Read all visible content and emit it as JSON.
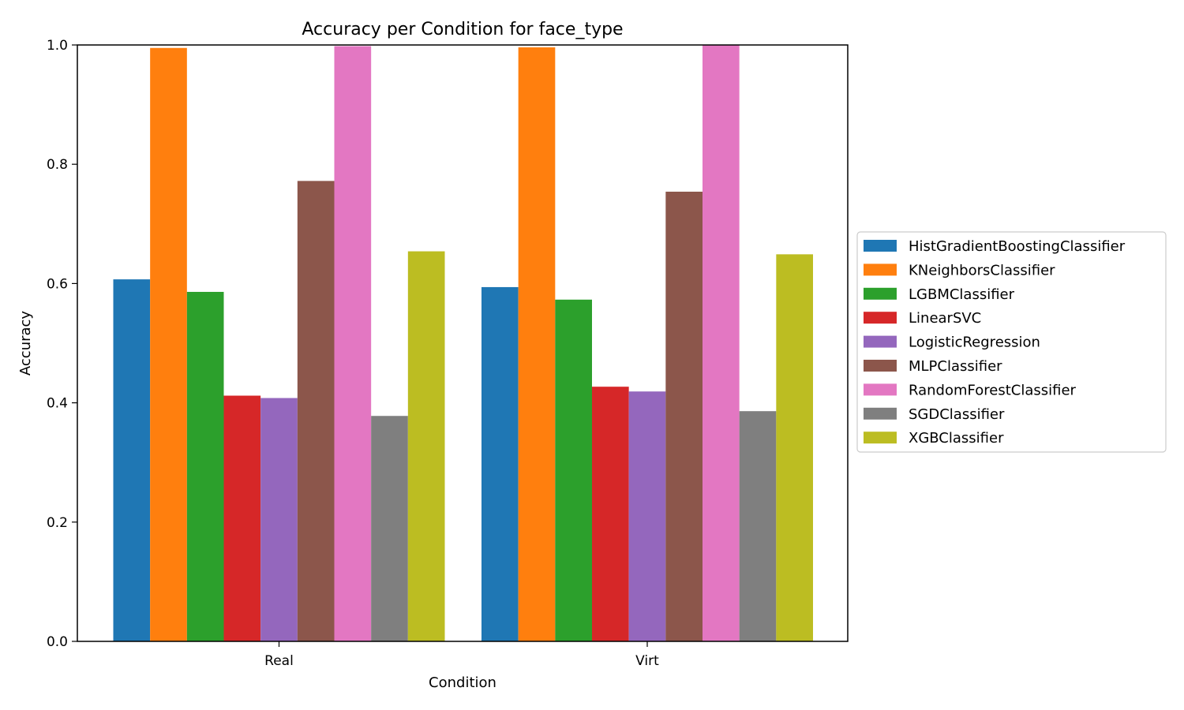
{
  "chart_data": {
    "type": "bar",
    "title": "Accuracy per Condition for face_type",
    "xlabel": "Condition",
    "ylabel": "Accuracy",
    "ylim": [
      0,
      1.0
    ],
    "yticks": [
      "0.0",
      "0.2",
      "0.4",
      "0.6",
      "0.8",
      "1.0"
    ],
    "categories": [
      "Real",
      "Virt"
    ],
    "legend_position": "center-right, outside plot",
    "series": [
      {
        "name": "HistGradientBoostingClassifier",
        "color": "#1f77b4",
        "values": [
          0.607,
          0.594
        ]
      },
      {
        "name": "KNeighborsClassifier",
        "color": "#ff7f0e",
        "values": [
          0.995,
          0.996
        ]
      },
      {
        "name": "LGBMClassifier",
        "color": "#2ca02c",
        "values": [
          0.586,
          0.573
        ]
      },
      {
        "name": "LinearSVC",
        "color": "#d62728",
        "values": [
          0.412,
          0.427
        ]
      },
      {
        "name": "LogisticRegression",
        "color": "#9467bd",
        "values": [
          0.408,
          0.419
        ]
      },
      {
        "name": "MLPClassifier",
        "color": "#8c564b",
        "values": [
          0.772,
          0.754
        ]
      },
      {
        "name": "RandomForestClassifier",
        "color": "#e377c2",
        "values": [
          0.998,
          1.0
        ]
      },
      {
        "name": "SGDClassifier",
        "color": "#7f7f7f",
        "values": [
          0.378,
          0.386
        ]
      },
      {
        "name": "XGBClassifier",
        "color": "#bcbd22",
        "values": [
          0.654,
          0.649
        ]
      }
    ]
  }
}
